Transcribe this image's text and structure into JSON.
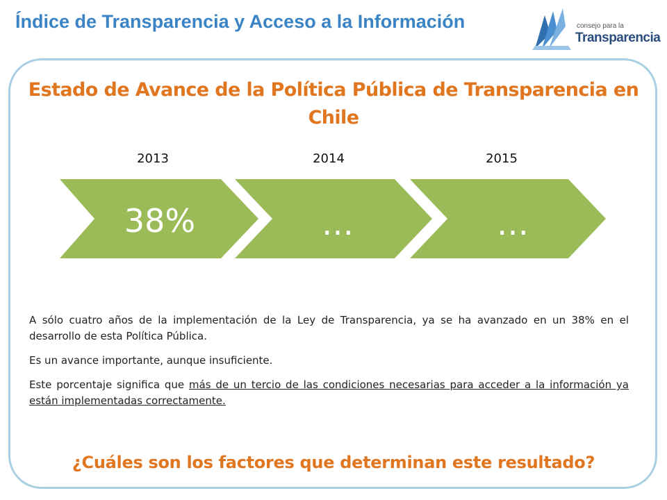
{
  "header": {
    "title": "Índice de Transparencia y Acceso a la Información",
    "logo": {
      "small_text": "consejo para la",
      "big_text": "Transparencia"
    }
  },
  "main": {
    "title": "Estado de Avance de la Política Pública de Transparencia en Chile"
  },
  "timeline": {
    "fill_color": "#9bbb59",
    "steps": [
      {
        "year": "2013",
        "value": "38%"
      },
      {
        "year": "2014",
        "value": "…"
      },
      {
        "year": "2015",
        "value": "…"
      }
    ]
  },
  "body": {
    "p1": "A sólo cuatro años de la implementación de la Ley de Transparencia, ya se ha avanzado en un 38% en el desarrollo de esta Política Pública.",
    "p2": "Es un avance importante, aunque insuficiente.",
    "p3_prefix": "Este porcentaje significa que ",
    "p3_underlined": "más de un tercio de las condiciones necesarias para acceder a la información ya están implementadas correctamente."
  },
  "footer": {
    "question": "¿Cuáles son los factores que determinan este resultado?"
  }
}
